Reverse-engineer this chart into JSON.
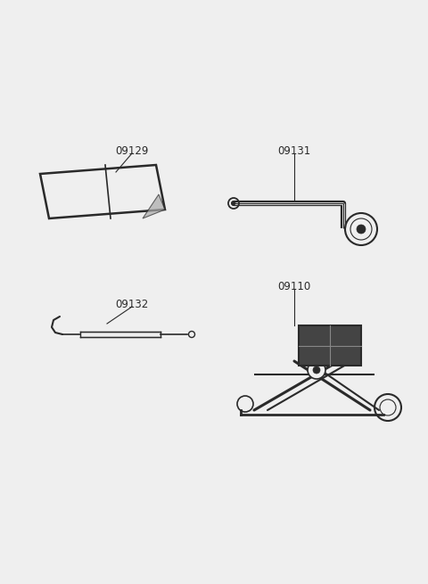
{
  "bg_color": "#efefef",
  "line_color": "#2a2a2a",
  "label_color": "#2a2a2a",
  "fig_width": 4.8,
  "fig_height": 6.55,
  "dpi": 100
}
